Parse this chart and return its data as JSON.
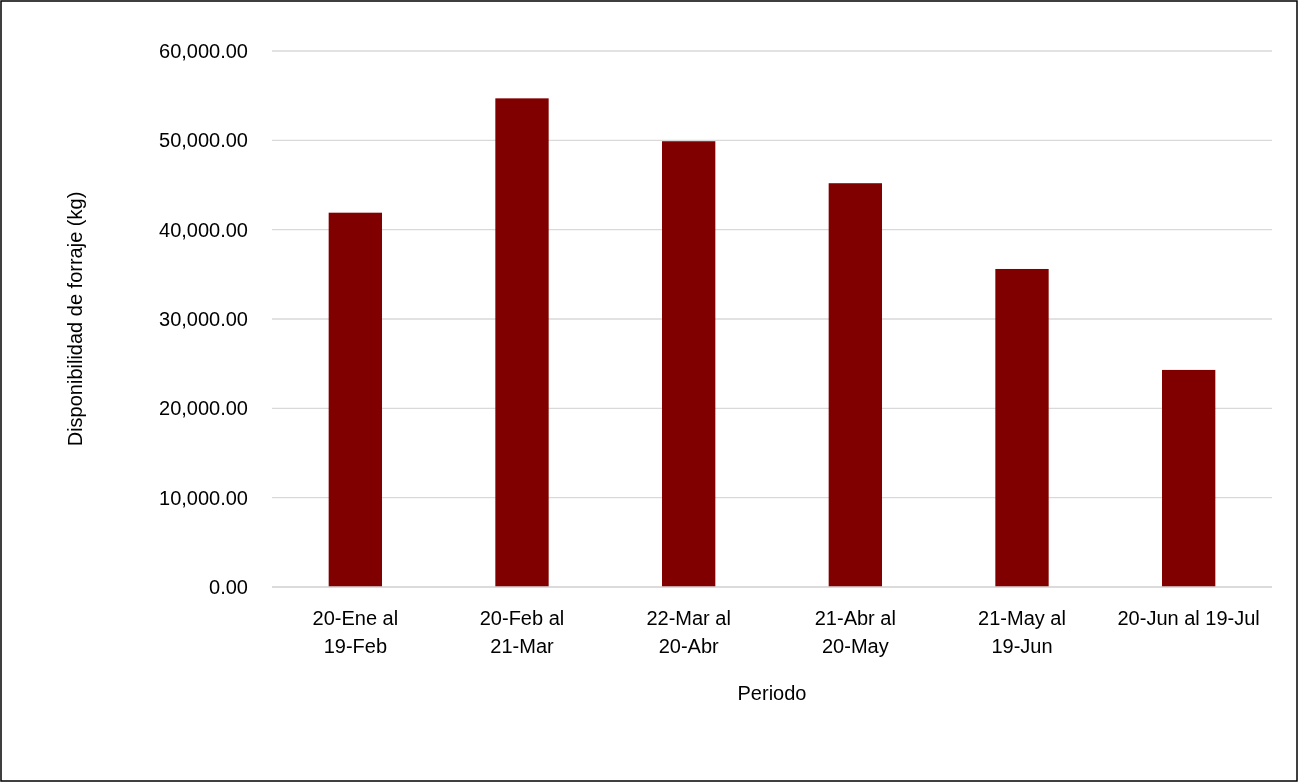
{
  "chart_data": {
    "type": "bar",
    "xlabel": "Periodo",
    "ylabel": "Disponibilidad de forraje (kg)",
    "categories": [
      "20-Ene al 19-Feb",
      "20-Feb al 21-Mar",
      "22-Mar al 20-Abr",
      "21-Abr al 20-May",
      "21-May al 19-Jun",
      "20-Jun al 19-Jul"
    ],
    "values": [
      41900,
      54700,
      49900,
      45200,
      35600,
      24300
    ],
    "color": "#800000",
    "ylim": [
      0,
      60000
    ],
    "yticks": [
      {
        "value": 0,
        "label": "0.00"
      },
      {
        "value": 10000,
        "label": "10,000.00"
      },
      {
        "value": 20000,
        "label": "20,000.00"
      },
      {
        "value": 30000,
        "label": "30,000.00"
      },
      {
        "value": 40000,
        "label": "40,000.00"
      },
      {
        "value": 50000,
        "label": "50,000.00"
      },
      {
        "value": 60000,
        "label": "60,000.00"
      }
    ],
    "grid": "y"
  }
}
